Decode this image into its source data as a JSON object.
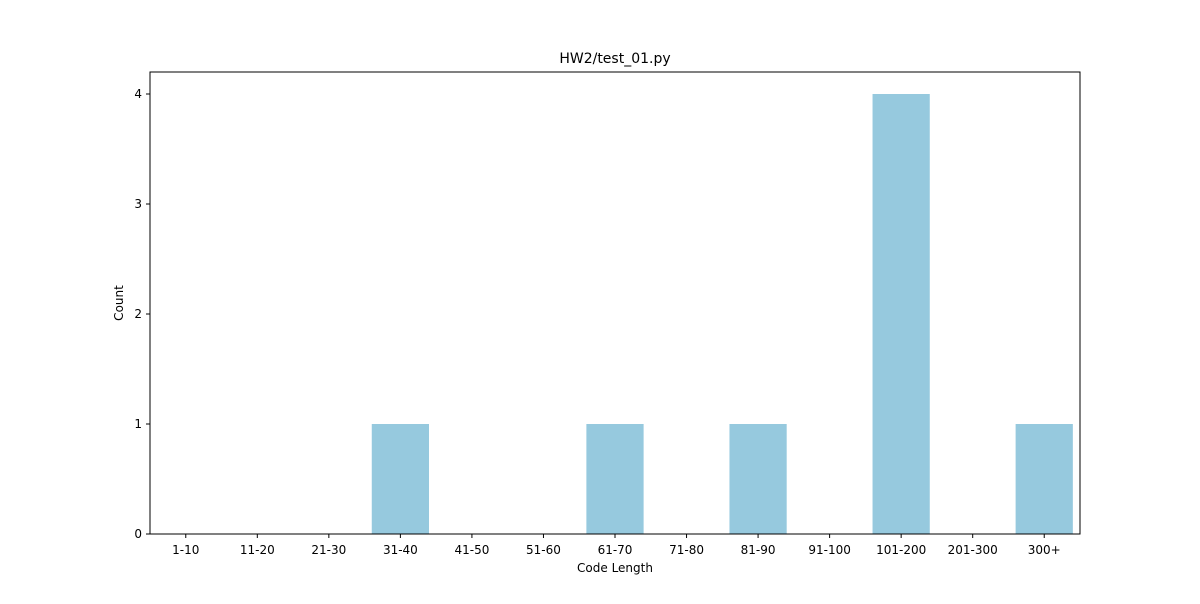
{
  "chart_data": {
    "type": "bar",
    "title": "HW2/test_01.py",
    "xlabel": "Code Length",
    "ylabel": "Count",
    "categories": [
      "1-10",
      "11-20",
      "21-30",
      "31-40",
      "41-50",
      "51-60",
      "61-70",
      "71-80",
      "81-90",
      "91-100",
      "101-200",
      "201-300",
      "300+"
    ],
    "values": [
      0,
      0,
      0,
      1,
      0,
      0,
      1,
      0,
      1,
      0,
      4,
      0,
      1
    ],
    "ylim": [
      0,
      4.2
    ],
    "yticks": [
      0,
      1,
      2,
      3,
      4
    ],
    "grid": false,
    "bar_color": "#96c9de"
  }
}
